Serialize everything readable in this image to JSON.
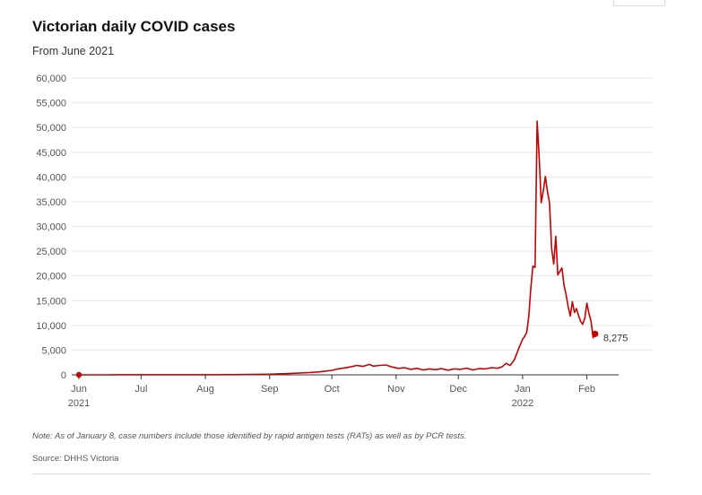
{
  "chart_data": {
    "type": "line",
    "title": "Victorian daily COVID cases",
    "subtitle": "From June 2021",
    "xlabel": "",
    "ylabel": "",
    "ylim": [
      0,
      60000
    ],
    "yticks": [
      0,
      5000,
      10000,
      15000,
      20000,
      25000,
      30000,
      35000,
      40000,
      45000,
      50000,
      55000,
      60000
    ],
    "ytick_labels": [
      "0",
      "5,000",
      "10,000",
      "15,000",
      "20,000",
      "25,000",
      "30,000",
      "35,000",
      "40,000",
      "45,000",
      "50,000",
      "55,000",
      "60,000"
    ],
    "xlim": [
      "2021-06-01",
      "2022-02-12"
    ],
    "xticks": [
      {
        "date": "2021-06-01",
        "label": "Jun",
        "sublabel": "2021"
      },
      {
        "date": "2021-07-01",
        "label": "Jul",
        "sublabel": ""
      },
      {
        "date": "2021-08-01",
        "label": "Aug",
        "sublabel": ""
      },
      {
        "date": "2021-09-01",
        "label": "Sep",
        "sublabel": ""
      },
      {
        "date": "2021-10-01",
        "label": "Oct",
        "sublabel": ""
      },
      {
        "date": "2021-11-01",
        "label": "Nov",
        "sublabel": ""
      },
      {
        "date": "2021-12-01",
        "label": "Dec",
        "sublabel": ""
      },
      {
        "date": "2022-01-01",
        "label": "Jan",
        "sublabel": "2022"
      },
      {
        "date": "2022-02-01",
        "label": "Feb",
        "sublabel": ""
      }
    ],
    "grid": true,
    "line_color": "#c70000",
    "series": [
      {
        "name": "",
        "points": [
          [
            "2021-06-01",
            0
          ],
          [
            "2021-06-15",
            5
          ],
          [
            "2021-07-01",
            10
          ],
          [
            "2021-07-15",
            20
          ],
          [
            "2021-08-01",
            15
          ],
          [
            "2021-08-15",
            40
          ],
          [
            "2021-09-01",
            120
          ],
          [
            "2021-09-10",
            250
          ],
          [
            "2021-09-20",
            450
          ],
          [
            "2021-09-25",
            600
          ],
          [
            "2021-10-01",
            900
          ],
          [
            "2021-10-04",
            1200
          ],
          [
            "2021-10-07",
            1400
          ],
          [
            "2021-10-10",
            1600
          ],
          [
            "2021-10-13",
            1900
          ],
          [
            "2021-10-16",
            1700
          ],
          [
            "2021-10-19",
            2100
          ],
          [
            "2021-10-21",
            1750
          ],
          [
            "2021-10-24",
            1900
          ],
          [
            "2021-10-27",
            2000
          ],
          [
            "2021-10-30",
            1600
          ],
          [
            "2021-11-02",
            1300
          ],
          [
            "2021-11-05",
            1450
          ],
          [
            "2021-11-08",
            1100
          ],
          [
            "2021-11-11",
            1300
          ],
          [
            "2021-11-14",
            1000
          ],
          [
            "2021-11-17",
            1200
          ],
          [
            "2021-11-20",
            1050
          ],
          [
            "2021-11-23",
            1250
          ],
          [
            "2021-11-26",
            950
          ],
          [
            "2021-11-29",
            1200
          ],
          [
            "2021-12-02",
            1100
          ],
          [
            "2021-12-05",
            1350
          ],
          [
            "2021-12-08",
            1000
          ],
          [
            "2021-12-11",
            1250
          ],
          [
            "2021-12-14",
            1200
          ],
          [
            "2021-12-17",
            1450
          ],
          [
            "2021-12-20",
            1350
          ],
          [
            "2021-12-22",
            1600
          ],
          [
            "2021-12-24",
            2300
          ],
          [
            "2021-12-26",
            1900
          ],
          [
            "2021-12-28",
            3000
          ],
          [
            "2021-12-30",
            5200
          ],
          [
            "2022-01-01",
            7200
          ],
          [
            "2022-01-02",
            7800
          ],
          [
            "2022-01-03",
            8600
          ],
          [
            "2022-01-04",
            11800
          ],
          [
            "2022-01-05",
            17600
          ],
          [
            "2022-01-06",
            22000
          ],
          [
            "2022-01-07",
            21700
          ],
          [
            "2022-01-08",
            51300
          ],
          [
            "2022-01-09",
            44000
          ],
          [
            "2022-01-10",
            34800
          ],
          [
            "2022-01-11",
            37200
          ],
          [
            "2022-01-12",
            40100
          ],
          [
            "2022-01-13",
            37100
          ],
          [
            "2022-01-14",
            34800
          ],
          [
            "2022-01-15",
            25500
          ],
          [
            "2022-01-16",
            22400
          ],
          [
            "2022-01-17",
            28000
          ],
          [
            "2022-01-18",
            20200
          ],
          [
            "2022-01-19",
            20900
          ],
          [
            "2022-01-20",
            21600
          ],
          [
            "2022-01-21",
            18100
          ],
          [
            "2022-01-22",
            16200
          ],
          [
            "2022-01-23",
            13700
          ],
          [
            "2022-01-24",
            11900
          ],
          [
            "2022-01-25",
            14800
          ],
          [
            "2022-01-26",
            12600
          ],
          [
            "2022-01-27",
            13400
          ],
          [
            "2022-01-28",
            12000
          ],
          [
            "2022-01-29",
            10800
          ],
          [
            "2022-01-30",
            10200
          ],
          [
            "2022-01-31",
            11500
          ],
          [
            "2022-02-01",
            14500
          ],
          [
            "2022-02-02",
            12400
          ],
          [
            "2022-02-03",
            10900
          ],
          [
            "2022-02-04",
            7500
          ],
          [
            "2022-02-05",
            8275
          ]
        ]
      }
    ],
    "annotations": [
      {
        "date": "2022-02-05",
        "value": 8275,
        "label": "8,275"
      }
    ],
    "start_marker": {
      "date": "2021-06-01",
      "value": 0
    },
    "note": "Note: As of January 8, case numbers include those identified by rapid antigen tests (RATs) as well as by PCR tests.",
    "source": "Source: DHHS Victoria"
  }
}
